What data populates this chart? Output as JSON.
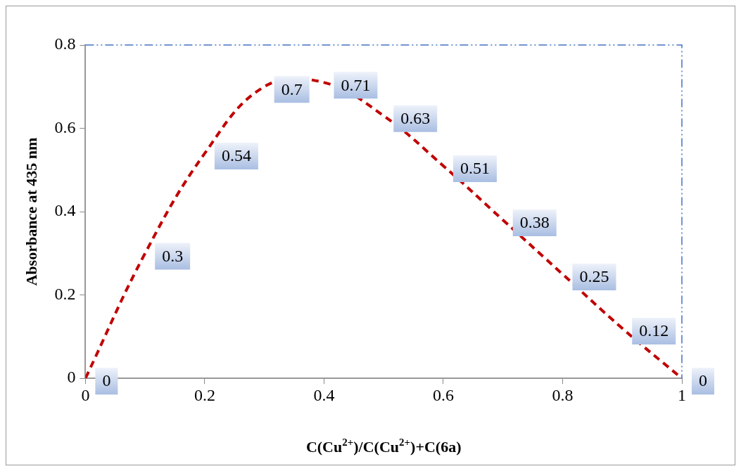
{
  "chart_data": {
    "type": "line",
    "xlabel": "C(Cu$^{2+}$)/C(Cu$^{2+}$)+C(6a)",
    "ylabel": "Absorbance at 435 nm",
    "x": [
      0,
      0.1,
      0.2,
      0.3,
      0.4,
      0.5,
      0.6,
      0.7,
      0.8,
      0.9,
      1
    ],
    "series": [
      {
        "color": "#c00000",
        "values": [
          0,
          0.3,
          0.54,
          0.7,
          0.71,
          0.63,
          0.51,
          0.38,
          0.25,
          0.12,
          0
        ]
      }
    ],
    "xlim": [
      0,
      1
    ],
    "xticks": [
      0,
      0.2,
      0.4,
      0.6,
      0.8,
      1
    ],
    "ylim": [
      0,
      0.8
    ],
    "yticks": [
      0,
      0.2,
      0.4,
      0.6,
      0.8
    ],
    "grid": false,
    "legend": false,
    "marker": "none",
    "line_style": "dashed",
    "data_labels": true
  }
}
